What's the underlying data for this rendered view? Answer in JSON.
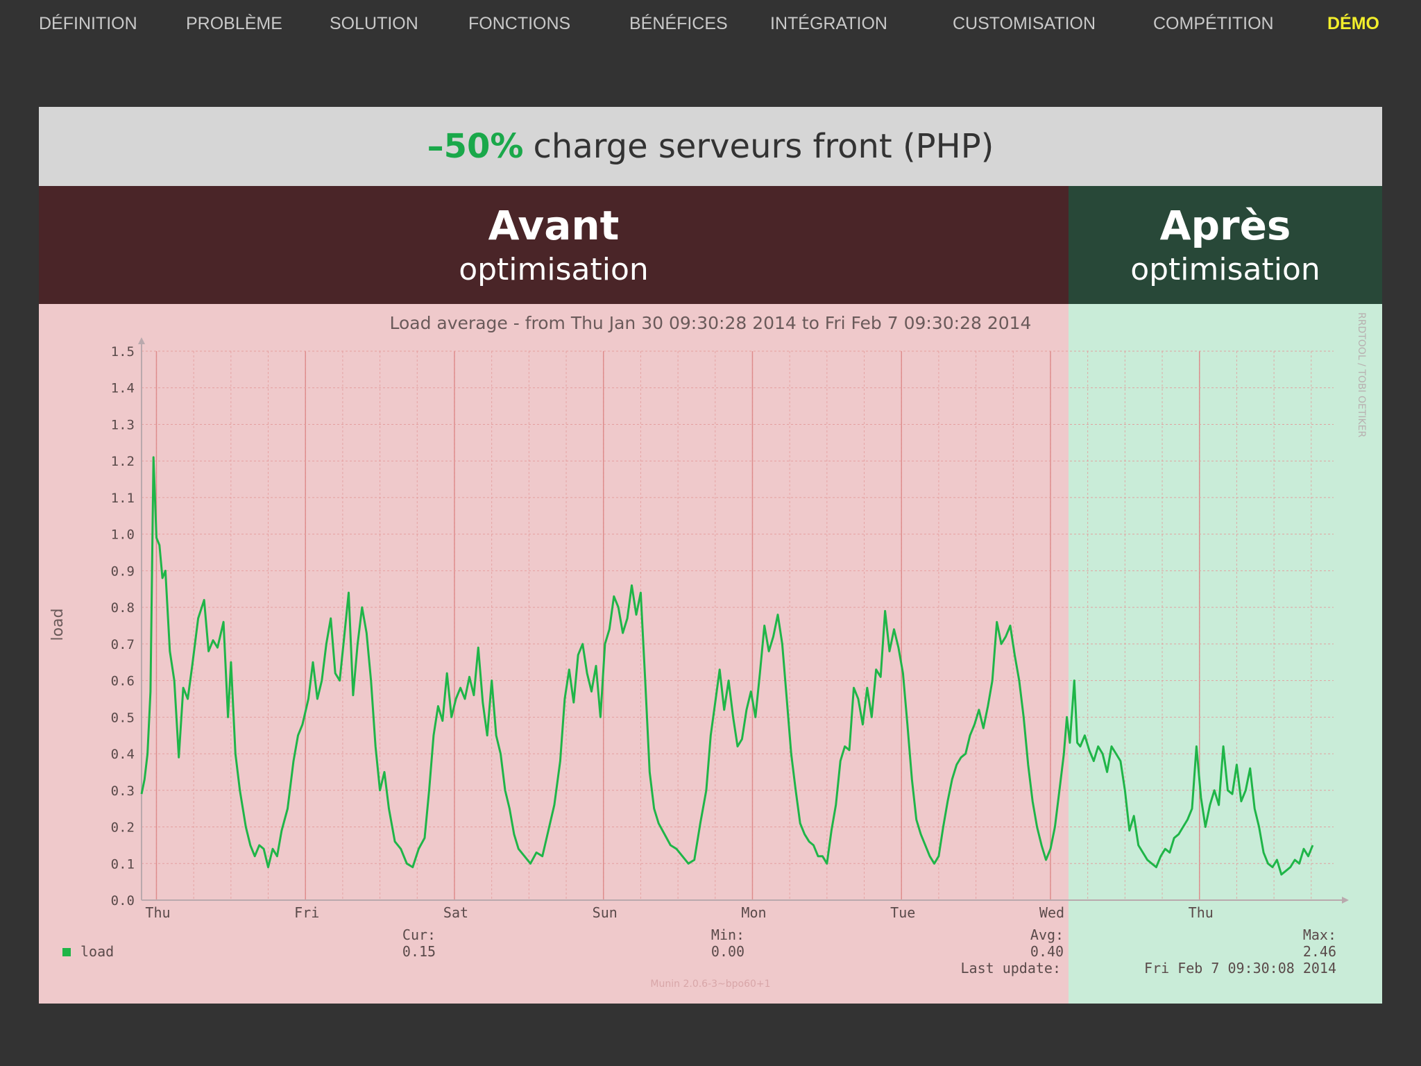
{
  "nav": {
    "items": [
      {
        "label": "DÉFINITION",
        "active": false
      },
      {
        "label": "PROBLÈME",
        "active": false
      },
      {
        "label": "SOLUTION",
        "active": false
      },
      {
        "label": "FONCTIONS",
        "active": false
      },
      {
        "label": "BÉNÉFICES",
        "active": false
      },
      {
        "label": "INTÉGRATION",
        "active": false
      },
      {
        "label": "CUSTOMISATION",
        "active": false
      },
      {
        "label": "COMPÉTITION",
        "active": false
      },
      {
        "label": "DÉMO",
        "active": true
      }
    ],
    "active_color": "#f2ee2b"
  },
  "headline": {
    "highlight": "–50%",
    "text": "charge serveurs front (PHP)",
    "highlight_color": "#1aa84a"
  },
  "phases": {
    "before": {
      "title": "Avant",
      "subtitle": "optimisation",
      "color": "#4a2528"
    },
    "after": {
      "title": "Après",
      "subtitle": "optimisation",
      "color": "#284838"
    }
  },
  "chart_data": {
    "type": "line",
    "title": "Load average - from Thu Jan 30 09:30:28 2014 to Fri Feb  7 09:30:28 2014",
    "ylabel": "load",
    "xlabel": "",
    "ylim": [
      0,
      1.5
    ],
    "yticks": [
      "0.0",
      "0.1",
      "0.2",
      "0.3",
      "0.4",
      "0.5",
      "0.6",
      "0.7",
      "0.8",
      "0.9",
      "1.0",
      "1.1",
      "1.2",
      "1.3",
      "1.4",
      "1.5"
    ],
    "xlim": [
      0,
      8
    ],
    "xticks": [
      {
        "label": "Thu",
        "x": 0.1
      },
      {
        "label": "Fri",
        "x": 1.1
      },
      {
        "label": "Sat",
        "x": 2.1
      },
      {
        "label": "Sun",
        "x": 3.1
      },
      {
        "label": "Mon",
        "x": 4.1
      },
      {
        "label": "Tue",
        "x": 5.1
      },
      {
        "label": "Wed",
        "x": 6.1
      },
      {
        "label": "Thu",
        "x": 7.1
      }
    ],
    "split_x": 6.2,
    "grid": true,
    "series": [
      {
        "name": "load",
        "color": "#1fb548",
        "points": [
          [
            0.0,
            0.29
          ],
          [
            0.02,
            0.33
          ],
          [
            0.04,
            0.4
          ],
          [
            0.06,
            0.57
          ],
          [
            0.08,
            1.21
          ],
          [
            0.1,
            0.99
          ],
          [
            0.12,
            0.97
          ],
          [
            0.14,
            0.88
          ],
          [
            0.16,
            0.9
          ],
          [
            0.19,
            0.68
          ],
          [
            0.22,
            0.6
          ],
          [
            0.25,
            0.39
          ],
          [
            0.28,
            0.58
          ],
          [
            0.31,
            0.55
          ],
          [
            0.34,
            0.64
          ],
          [
            0.38,
            0.77
          ],
          [
            0.42,
            0.82
          ],
          [
            0.45,
            0.68
          ],
          [
            0.48,
            0.71
          ],
          [
            0.51,
            0.69
          ],
          [
            0.55,
            0.76
          ],
          [
            0.58,
            0.5
          ],
          [
            0.6,
            0.65
          ],
          [
            0.63,
            0.4
          ],
          [
            0.66,
            0.3
          ],
          [
            0.7,
            0.2
          ],
          [
            0.73,
            0.15
          ],
          [
            0.76,
            0.12
          ],
          [
            0.79,
            0.15
          ],
          [
            0.82,
            0.14
          ],
          [
            0.85,
            0.09
          ],
          [
            0.88,
            0.14
          ],
          [
            0.91,
            0.12
          ],
          [
            0.94,
            0.19
          ],
          [
            0.98,
            0.25
          ],
          [
            1.02,
            0.38
          ],
          [
            1.05,
            0.45
          ],
          [
            1.08,
            0.48
          ],
          [
            1.12,
            0.55
          ],
          [
            1.15,
            0.65
          ],
          [
            1.18,
            0.55
          ],
          [
            1.21,
            0.6
          ],
          [
            1.24,
            0.7
          ],
          [
            1.27,
            0.77
          ],
          [
            1.3,
            0.62
          ],
          [
            1.33,
            0.6
          ],
          [
            1.36,
            0.72
          ],
          [
            1.39,
            0.84
          ],
          [
            1.42,
            0.56
          ],
          [
            1.45,
            0.7
          ],
          [
            1.48,
            0.8
          ],
          [
            1.51,
            0.73
          ],
          [
            1.54,
            0.6
          ],
          [
            1.57,
            0.42
          ],
          [
            1.6,
            0.3
          ],
          [
            1.63,
            0.35
          ],
          [
            1.66,
            0.25
          ],
          [
            1.7,
            0.16
          ],
          [
            1.74,
            0.14
          ],
          [
            1.78,
            0.1
          ],
          [
            1.82,
            0.09
          ],
          [
            1.86,
            0.14
          ],
          [
            1.9,
            0.17
          ],
          [
            1.93,
            0.3
          ],
          [
            1.96,
            0.45
          ],
          [
            1.99,
            0.53
          ],
          [
            2.02,
            0.49
          ],
          [
            2.05,
            0.62
          ],
          [
            2.08,
            0.5
          ],
          [
            2.11,
            0.55
          ],
          [
            2.14,
            0.58
          ],
          [
            2.17,
            0.55
          ],
          [
            2.2,
            0.61
          ],
          [
            2.23,
            0.56
          ],
          [
            2.26,
            0.69
          ],
          [
            2.29,
            0.54
          ],
          [
            2.32,
            0.45
          ],
          [
            2.35,
            0.6
          ],
          [
            2.38,
            0.45
          ],
          [
            2.41,
            0.4
          ],
          [
            2.44,
            0.3
          ],
          [
            2.47,
            0.25
          ],
          [
            2.5,
            0.18
          ],
          [
            2.53,
            0.14
          ],
          [
            2.57,
            0.12
          ],
          [
            2.61,
            0.1
          ],
          [
            2.65,
            0.13
          ],
          [
            2.69,
            0.12
          ],
          [
            2.73,
            0.19
          ],
          [
            2.77,
            0.26
          ],
          [
            2.81,
            0.38
          ],
          [
            2.84,
            0.55
          ],
          [
            2.87,
            0.63
          ],
          [
            2.9,
            0.54
          ],
          [
            2.93,
            0.67
          ],
          [
            2.96,
            0.7
          ],
          [
            2.99,
            0.62
          ],
          [
            3.02,
            0.57
          ],
          [
            3.05,
            0.64
          ],
          [
            3.08,
            0.5
          ],
          [
            3.11,
            0.7
          ],
          [
            3.14,
            0.74
          ],
          [
            3.17,
            0.83
          ],
          [
            3.2,
            0.8
          ],
          [
            3.23,
            0.73
          ],
          [
            3.26,
            0.77
          ],
          [
            3.29,
            0.86
          ],
          [
            3.32,
            0.78
          ],
          [
            3.35,
            0.84
          ],
          [
            3.38,
            0.6
          ],
          [
            3.41,
            0.35
          ],
          [
            3.44,
            0.25
          ],
          [
            3.47,
            0.21
          ],
          [
            3.51,
            0.18
          ],
          [
            3.55,
            0.15
          ],
          [
            3.59,
            0.14
          ],
          [
            3.63,
            0.12
          ],
          [
            3.67,
            0.1
          ],
          [
            3.71,
            0.11
          ],
          [
            3.75,
            0.21
          ],
          [
            3.79,
            0.3
          ],
          [
            3.82,
            0.45
          ],
          [
            3.85,
            0.54
          ],
          [
            3.88,
            0.63
          ],
          [
            3.91,
            0.52
          ],
          [
            3.94,
            0.6
          ],
          [
            3.97,
            0.5
          ],
          [
            4.0,
            0.42
          ],
          [
            4.03,
            0.44
          ],
          [
            4.06,
            0.52
          ],
          [
            4.09,
            0.57
          ],
          [
            4.12,
            0.5
          ],
          [
            4.15,
            0.62
          ],
          [
            4.18,
            0.75
          ],
          [
            4.21,
            0.68
          ],
          [
            4.24,
            0.72
          ],
          [
            4.27,
            0.78
          ],
          [
            4.3,
            0.7
          ],
          [
            4.33,
            0.55
          ],
          [
            4.36,
            0.4
          ],
          [
            4.39,
            0.3
          ],
          [
            4.42,
            0.21
          ],
          [
            4.45,
            0.18
          ],
          [
            4.48,
            0.16
          ],
          [
            4.51,
            0.15
          ],
          [
            4.54,
            0.12
          ],
          [
            4.57,
            0.12
          ],
          [
            4.6,
            0.1
          ],
          [
            4.63,
            0.19
          ],
          [
            4.66,
            0.26
          ],
          [
            4.69,
            0.38
          ],
          [
            4.72,
            0.42
          ],
          [
            4.75,
            0.41
          ],
          [
            4.78,
            0.58
          ],
          [
            4.81,
            0.55
          ],
          [
            4.84,
            0.48
          ],
          [
            4.87,
            0.58
          ],
          [
            4.9,
            0.5
          ],
          [
            4.93,
            0.63
          ],
          [
            4.96,
            0.61
          ],
          [
            4.99,
            0.79
          ],
          [
            5.02,
            0.68
          ],
          [
            5.05,
            0.74
          ],
          [
            5.08,
            0.69
          ],
          [
            5.11,
            0.62
          ],
          [
            5.14,
            0.48
          ],
          [
            5.17,
            0.33
          ],
          [
            5.2,
            0.22
          ],
          [
            5.23,
            0.18
          ],
          [
            5.26,
            0.15
          ],
          [
            5.29,
            0.12
          ],
          [
            5.32,
            0.1
          ],
          [
            5.35,
            0.12
          ],
          [
            5.38,
            0.2
          ],
          [
            5.41,
            0.27
          ],
          [
            5.44,
            0.33
          ],
          [
            5.47,
            0.37
          ],
          [
            5.5,
            0.39
          ],
          [
            5.53,
            0.4
          ],
          [
            5.56,
            0.45
          ],
          [
            5.59,
            0.48
          ],
          [
            5.62,
            0.52
          ],
          [
            5.65,
            0.47
          ],
          [
            5.68,
            0.53
          ],
          [
            5.71,
            0.6
          ],
          [
            5.74,
            0.76
          ],
          [
            5.77,
            0.7
          ],
          [
            5.8,
            0.72
          ],
          [
            5.83,
            0.75
          ],
          [
            5.86,
            0.67
          ],
          [
            5.89,
            0.6
          ],
          [
            5.92,
            0.5
          ],
          [
            5.95,
            0.37
          ],
          [
            5.98,
            0.27
          ],
          [
            6.01,
            0.2
          ],
          [
            6.04,
            0.15
          ],
          [
            6.07,
            0.11
          ],
          [
            6.1,
            0.14
          ],
          [
            6.13,
            0.2
          ],
          [
            6.16,
            0.3
          ],
          [
            6.19,
            0.4
          ],
          [
            6.21,
            0.5
          ],
          [
            6.23,
            0.43
          ],
          [
            6.26,
            0.6
          ],
          [
            6.28,
            0.43
          ],
          [
            6.3,
            0.42
          ],
          [
            6.33,
            0.45
          ],
          [
            6.36,
            0.41
          ],
          [
            6.39,
            0.38
          ],
          [
            6.42,
            0.42
          ],
          [
            6.45,
            0.4
          ],
          [
            6.48,
            0.35
          ],
          [
            6.51,
            0.42
          ],
          [
            6.54,
            0.4
          ],
          [
            6.57,
            0.38
          ],
          [
            6.6,
            0.3
          ],
          [
            6.63,
            0.19
          ],
          [
            6.66,
            0.23
          ],
          [
            6.69,
            0.15
          ],
          [
            6.72,
            0.13
          ],
          [
            6.75,
            0.11
          ],
          [
            6.78,
            0.1
          ],
          [
            6.81,
            0.09
          ],
          [
            6.84,
            0.12
          ],
          [
            6.87,
            0.14
          ],
          [
            6.9,
            0.13
          ],
          [
            6.93,
            0.17
          ],
          [
            6.96,
            0.18
          ],
          [
            6.99,
            0.2
          ],
          [
            7.02,
            0.22
          ],
          [
            7.05,
            0.25
          ],
          [
            7.08,
            0.42
          ],
          [
            7.11,
            0.28
          ],
          [
            7.14,
            0.2
          ],
          [
            7.17,
            0.26
          ],
          [
            7.2,
            0.3
          ],
          [
            7.23,
            0.26
          ],
          [
            7.26,
            0.42
          ],
          [
            7.29,
            0.3
          ],
          [
            7.32,
            0.29
          ],
          [
            7.35,
            0.37
          ],
          [
            7.38,
            0.27
          ],
          [
            7.41,
            0.3
          ],
          [
            7.44,
            0.36
          ],
          [
            7.47,
            0.25
          ],
          [
            7.5,
            0.2
          ],
          [
            7.53,
            0.13
          ],
          [
            7.56,
            0.1
          ],
          [
            7.59,
            0.09
          ],
          [
            7.62,
            0.11
          ],
          [
            7.65,
            0.07
          ],
          [
            7.68,
            0.08
          ],
          [
            7.71,
            0.09
          ],
          [
            7.74,
            0.11
          ],
          [
            7.77,
            0.1
          ],
          [
            7.8,
            0.14
          ],
          [
            7.83,
            0.12
          ],
          [
            7.86,
            0.15
          ]
        ]
      }
    ],
    "legend": {
      "position": "bottom-left",
      "label": "load",
      "stats": [
        {
          "label": "Cur:",
          "value": "0.15"
        },
        {
          "label": "Min:",
          "value": "0.00"
        },
        {
          "label": "Avg:",
          "value": "0.40"
        },
        {
          "label": "Max:",
          "value": "2.46"
        }
      ],
      "last_update_label": "Last update:",
      "last_update_value": "Fri Feb  7 09:30:08 2014"
    },
    "watermark": "RRDTOOL / TOBI OETIKER",
    "footer": "Munin 2.0.6-3~bpo60+1",
    "region_colors": {
      "before": "#efc9cb",
      "after": "#c9ecd8"
    }
  }
}
